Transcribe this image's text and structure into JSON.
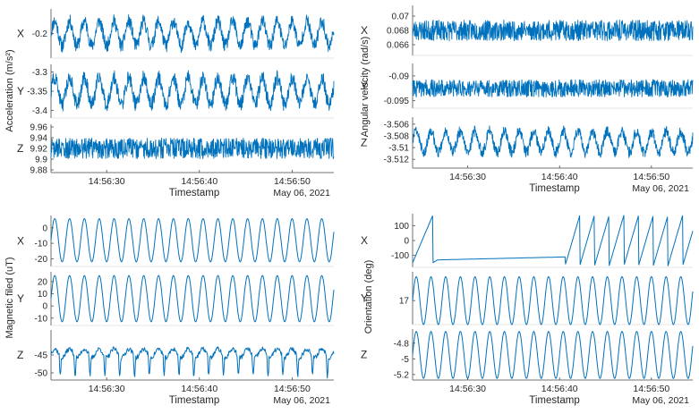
{
  "chart_data": [
    {
      "type": "line",
      "ylabel": "Acceleration (m/s²)",
      "xlabel": "Timestamp",
      "date_label": "May 06, 2021",
      "x_ticks": [
        "14:56:30",
        "14:56:40",
        "14:56:50"
      ],
      "x_tick_seconds": [
        30,
        40,
        50
      ],
      "x_range_seconds": [
        24,
        54.5
      ],
      "color": "#0072BD",
      "style": "noisy",
      "series": [
        {
          "name": "X",
          "ylim": [
            -0.27,
            -0.13
          ],
          "y_ticks": [
            -0.2
          ],
          "y_tick_labels": [
            "-0.2"
          ],
          "pattern": "sine",
          "period_s": 1.6,
          "center": -0.2,
          "amplitude": 0.035,
          "noise": 0.012
        },
        {
          "name": "Y",
          "ylim": [
            -3.42,
            -3.28
          ],
          "y_ticks": [
            -3.3,
            -3.35,
            -3.4
          ],
          "y_tick_labels": [
            "-3.3",
            "-3.35",
            "-3.4"
          ],
          "pattern": "sine",
          "period_s": 1.6,
          "center": -3.35,
          "amplitude": 0.035,
          "noise": 0.012
        },
        {
          "name": "Z",
          "ylim": [
            9.875,
            9.965
          ],
          "y_ticks": [
            9.88,
            9.9,
            9.92,
            9.94,
            9.96
          ],
          "y_tick_labels": [
            "9.88",
            "9.9",
            "9.92",
            "9.94",
            "9.96"
          ],
          "pattern": "noise",
          "center": 9.92,
          "amplitude": 0.0,
          "noise": 0.012
        }
      ]
    },
    {
      "type": "line",
      "ylabel": "Angular velocity (rad/s)",
      "xlabel": "Timestamp",
      "date_label": "May 06, 2021",
      "x_ticks": [
        "14:56:30",
        "14:56:40",
        "14:56:50"
      ],
      "x_tick_seconds": [
        30,
        40,
        50
      ],
      "x_range_seconds": [
        24,
        54.5
      ],
      "color": "#0072BD",
      "style": "noisy",
      "series": [
        {
          "name": "X",
          "ylim": [
            0.0645,
            0.0715
          ],
          "y_ticks": [
            0.07,
            0.068,
            0.066
          ],
          "y_tick_labels": [
            "0.07",
            "0.068",
            "0.066"
          ],
          "pattern": "noise",
          "center": 0.068,
          "amplitude": 0.0,
          "noise": 0.0009
        },
        {
          "name": "Y",
          "ylim": [
            -0.0965,
            -0.0875
          ],
          "y_ticks": [
            -0.09,
            -0.095
          ],
          "y_tick_labels": [
            "-0.09",
            "-0.095"
          ],
          "pattern": "noise",
          "center": -0.0925,
          "amplitude": 0.0,
          "noise": 0.0011
        },
        {
          "name": "Z",
          "ylim": [
            -3.5135,
            -3.5048
          ],
          "y_ticks": [
            -3.506,
            -3.508,
            -3.51,
            -3.512
          ],
          "y_tick_labels": [
            "-3.506",
            "-3.508",
            "-3.51",
            "-3.512"
          ],
          "pattern": "sine",
          "period_s": 1.6,
          "center": -3.509,
          "amplitude": 0.0018,
          "noise": 0.0006
        }
      ]
    },
    {
      "type": "line",
      "ylabel": "Magnetic filed (uT)",
      "xlabel": "Timestamp",
      "date_label": "May 06, 2021",
      "x_ticks": [
        "14:56:30",
        "14:56:40",
        "14:56:50"
      ],
      "x_tick_seconds": [
        30,
        40,
        50
      ],
      "x_range_seconds": [
        24,
        54.5
      ],
      "color": "#0072BD",
      "style": "smooth",
      "series": [
        {
          "name": "X",
          "ylim": [
            -25,
            8
          ],
          "y_ticks": [
            0,
            -10,
            -20
          ],
          "y_tick_labels": [
            "0",
            "-10",
            "-20"
          ],
          "pattern": "sine",
          "period_s": 1.6,
          "center": -8,
          "amplitude": 14,
          "noise": 0.0
        },
        {
          "name": "Y",
          "ylim": [
            -16,
            28
          ],
          "y_ticks": [
            20,
            10,
            0,
            -10
          ],
          "y_tick_labels": [
            "20",
            "10",
            "0",
            "-10"
          ],
          "pattern": "sine",
          "period_s": 1.6,
          "center": 6,
          "amplitude": 19,
          "noise": 0.0
        },
        {
          "name": "Z",
          "ylim": [
            -52,
            -38
          ],
          "y_ticks": [
            -45,
            -50
          ],
          "y_tick_labels": [
            "-45",
            "-50"
          ],
          "pattern": "spiky",
          "period_s": 1.6,
          "center": -44.5,
          "amplitude": 1.2,
          "noise": 0.4
        }
      ]
    },
    {
      "type": "line",
      "ylabel": "Orientation (deg)",
      "xlabel": "Timestamp",
      "date_label": "May 06, 2021",
      "x_ticks": [
        "14:56:30",
        "14:56:40",
        "14:56:50"
      ],
      "x_tick_seconds": [
        30,
        40,
        50
      ],
      "x_range_seconds": [
        24,
        54.5
      ],
      "color": "#0072BD",
      "style": "smooth",
      "series": [
        {
          "name": "X",
          "ylim": [
            -180,
            180
          ],
          "y_ticks": [
            100,
            0,
            -100
          ],
          "y_tick_labels": [
            "100",
            "0",
            "-100"
          ],
          "pattern": "orientation"
        },
        {
          "name": "Y",
          "ylim": [
            16,
            18.2
          ],
          "y_ticks": [
            17
          ],
          "y_tick_labels": [
            "17"
          ],
          "pattern": "sine",
          "period_s": 1.6,
          "center": 17,
          "amplitude": 1.0,
          "noise": 0.0
        },
        {
          "name": "Z",
          "ylim": [
            -5.27,
            -4.62
          ],
          "y_ticks": [
            -4.8,
            -5,
            -5.2
          ],
          "y_tick_labels": [
            "-4.8",
            "-5",
            "-5.2"
          ],
          "pattern": "sine",
          "period_s": 1.6,
          "center": -4.95,
          "amplitude": 0.3,
          "noise": 0.0
        }
      ]
    }
  ]
}
